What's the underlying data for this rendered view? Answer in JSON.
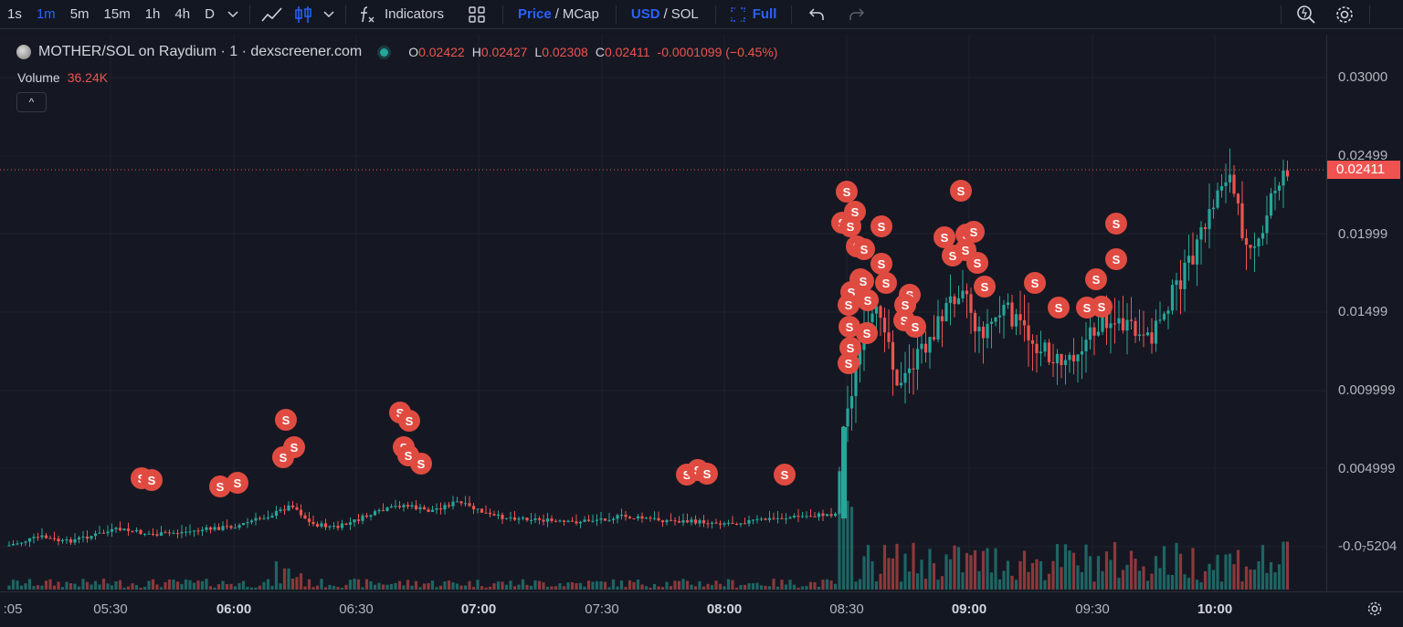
{
  "toolbar": {
    "timeframes": [
      "1s",
      "1m",
      "5m",
      "15m",
      "1h",
      "4h",
      "D"
    ],
    "active_timeframe": "1m",
    "indicators_label": "Indicators",
    "price_label": "Price",
    "price_sep": "/",
    "mcap_label": "MCap",
    "usd_label": "USD",
    "currency_sep": "/",
    "sol_label": "SOL",
    "full_label": "Full",
    "icons": [
      "chevron-down-icon",
      "line-chart-icon",
      "candles-icon",
      "chevron-down-icon",
      "function-icon",
      "layouts-icon",
      "fullscreen-icon",
      "undo-icon",
      "redo-icon",
      "quick-search-icon",
      "settings-icon"
    ]
  },
  "legend": {
    "symbol": "MOTHER/SOL on Raydium · 1 · dexscreener.com",
    "o_key": "O",
    "o_val": "0.02422",
    "h_key": "H",
    "h_val": "0.02427",
    "l_key": "L",
    "l_val": "0.02308",
    "c_key": "C",
    "c_val": "0.02411",
    "change": "-0.0001099 (−0.45%)",
    "volume_label": "Volume",
    "volume_value": "36.24K",
    "collapse": "^"
  },
  "price_axis": {
    "labels": [
      "0.03000",
      "0.02499",
      "0.01999",
      "0.01499",
      "0.009999",
      "0.004999",
      "-0.0₇5204"
    ],
    "last_price": "0.02411"
  },
  "time_axis": {
    "labels": [
      ":05",
      "05:30",
      "06:00",
      "06:30",
      "07:00",
      "07:30",
      "08:00",
      "08:30",
      "09:00",
      "09:30",
      "10:00"
    ],
    "bold": [
      "06:00",
      "07:00",
      "08:00",
      "09:00",
      "10:00"
    ]
  },
  "markers": {
    "label": "S"
  },
  "colors": {
    "up": "#26a69a",
    "down": "#ef5350",
    "marker": "#e04b41",
    "background": "#151822",
    "accent": "#2962ff"
  }
}
